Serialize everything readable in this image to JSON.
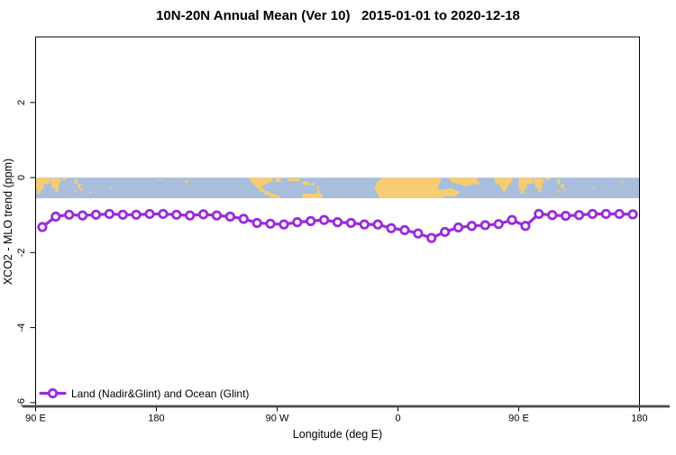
{
  "title": "10N-20N Annual Mean (Ver 10)   2015-01-01 to 2020-12-18",
  "axes": {
    "x": {
      "label": "Longitude (deg E)"
    },
    "y": {
      "label": "XCO2 - MLO trend (ppm)"
    }
  },
  "legend": {
    "label": "Land (Nadir&Glint) and Ocean (Glint)"
  },
  "colors": {
    "series": "#9B2BDB",
    "marker_fill": "#FFFFFF",
    "ocean": "#A8BEDC",
    "land": "#F6CD72",
    "axis_line": "#4A4A4A",
    "text": "#000000"
  },
  "chart_data": {
    "type": "line",
    "title": "10N-20N Annual Mean (Ver 10)   2015-01-01 to 2020-12-18",
    "xlabel": "Longitude (deg E)",
    "ylabel": "XCO2 - MLO trend (ppm)",
    "grid": false,
    "legend_position": "bottom-left",
    "xlim": [
      90,
      540
    ],
    "ylim": [
      -6.1,
      3.75
    ],
    "x_ticks": [
      {
        "v": 90,
        "label": "90 E"
      },
      {
        "v": 180,
        "label": "180"
      },
      {
        "v": 270,
        "label": "90 W"
      },
      {
        "v": 360,
        "label": "0"
      },
      {
        "v": 450,
        "label": "90 E"
      },
      {
        "v": 540,
        "label": "180"
      }
    ],
    "y_ticks": [
      {
        "v": 2,
        "label": "2"
      },
      {
        "v": 0,
        "label": "0"
      },
      {
        "v": -2,
        "label": "-2"
      },
      {
        "v": -4,
        "label": "-4"
      },
      {
        "v": -6,
        "label": "-6"
      }
    ],
    "map_band": {
      "top": 0,
      "bottom": -0.55
    },
    "x": [
      95,
      105,
      115,
      125,
      135,
      145,
      155,
      165,
      175,
      185,
      195,
      205,
      215,
      225,
      235,
      245,
      255,
      265,
      275,
      285,
      295,
      305,
      315,
      325,
      335,
      345,
      355,
      365,
      375,
      385,
      395,
      405,
      415,
      425,
      435,
      445,
      455,
      465,
      475,
      485,
      495,
      505,
      515,
      525,
      535
    ],
    "series": [
      {
        "name": "Land (Nadir&Glint) and Ocean (Glint)",
        "marker": "open-circle",
        "values": [
          -1.32,
          -1.04,
          -0.99,
          -1.01,
          -0.99,
          -0.97,
          -0.99,
          -0.99,
          -0.97,
          -0.97,
          -0.99,
          -1.01,
          -0.98,
          -1.01,
          -1.04,
          -1.1,
          -1.21,
          -1.23,
          -1.25,
          -1.19,
          -1.16,
          -1.13,
          -1.19,
          -1.21,
          -1.25,
          -1.25,
          -1.35,
          -1.4,
          -1.49,
          -1.61,
          -1.45,
          -1.33,
          -1.29,
          -1.27,
          -1.24,
          -1.13,
          -1.29,
          -0.97,
          -1.0,
          -1.02,
          -1.0,
          -0.97,
          -0.97,
          -0.97,
          -0.98
        ]
      }
    ]
  }
}
